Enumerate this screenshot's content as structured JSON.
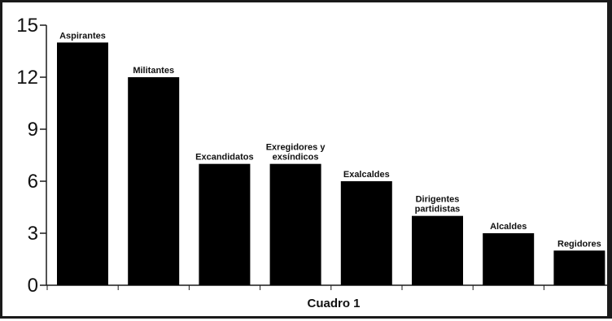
{
  "chart_data": {
    "type": "bar",
    "title": "Cuadro 1",
    "categories": [
      "Aspirantes",
      "Militantes",
      "Excandidatos",
      "Exregidores y exsíndicos",
      "Exalcaldes",
      "Dirigentes partidistas",
      "Alcaldes",
      "Regidores"
    ],
    "category_lines": [
      [
        "Aspirantes"
      ],
      [
        "Militantes"
      ],
      [
        "Excandidatos"
      ],
      [
        "Exregidores y",
        "exsíndicos"
      ],
      [
        "Exalcaldes"
      ],
      [
        "Dirigentes",
        "partidistas"
      ],
      [
        "Alcaldes"
      ],
      [
        "Regidores"
      ]
    ],
    "values": [
      14,
      12,
      7,
      7,
      6,
      4,
      3,
      2
    ],
    "yticks": [
      0,
      3,
      6,
      9,
      12,
      15
    ],
    "ylim": [
      0,
      15
    ],
    "xlabel": "",
    "ylabel": "",
    "grid": false,
    "bar_color": "#000000",
    "axis_color": "#1a1a1a"
  }
}
